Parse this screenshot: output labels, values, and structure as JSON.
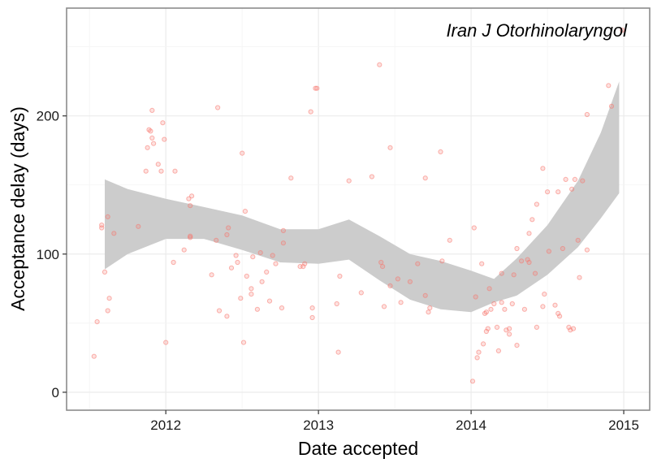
{
  "chart_data": {
    "type": "scatter",
    "title": "",
    "annotation": "Iran J Otorhinolaryngol",
    "xlabel": "Date accepted",
    "ylabel": "Acceptance delay (days)",
    "xlim": [
      2011.35,
      2015.17
    ],
    "ylim": [
      -13,
      278
    ],
    "x_ticks": [
      2012,
      2013,
      2014,
      2015
    ],
    "x_tick_labels": [
      "2012",
      "2013",
      "2014",
      "2015"
    ],
    "y_ticks": [
      0,
      100,
      200
    ],
    "y_tick_labels": [
      "0",
      "100",
      "200"
    ],
    "grid": true,
    "legend": "none",
    "point_color": "#f8766d",
    "smooth_fill": "#cccccc",
    "series": [
      {
        "values": [
          [
            2011.53,
            26
          ],
          [
            2011.55,
            51
          ],
          [
            2011.58,
            121
          ],
          [
            2011.58,
            119
          ],
          [
            2011.6,
            87
          ],
          [
            2011.62,
            127
          ],
          [
            2011.62,
            59
          ],
          [
            2011.63,
            68
          ],
          [
            2011.66,
            115
          ],
          [
            2011.82,
            120
          ],
          [
            2011.87,
            160
          ],
          [
            2011.88,
            177
          ],
          [
            2011.89,
            190
          ],
          [
            2011.9,
            189
          ],
          [
            2011.91,
            204
          ],
          [
            2011.91,
            184
          ],
          [
            2011.92,
            180
          ],
          [
            2011.95,
            165
          ],
          [
            2011.97,
            160
          ],
          [
            2011.98,
            195
          ],
          [
            2011.99,
            183
          ],
          [
            2012,
            36
          ],
          [
            2012.05,
            94
          ],
          [
            2012.06,
            160
          ],
          [
            2012.12,
            103
          ],
          [
            2012.15,
            140
          ],
          [
            2012.16,
            135
          ],
          [
            2012.16,
            113
          ],
          [
            2012.16,
            112
          ],
          [
            2012.17,
            142
          ],
          [
            2012.3,
            85
          ],
          [
            2012.33,
            110
          ],
          [
            2012.34,
            206
          ],
          [
            2012.35,
            59
          ],
          [
            2012.4,
            55
          ],
          [
            2012.4,
            114
          ],
          [
            2012.41,
            119
          ],
          [
            2012.43,
            90
          ],
          [
            2012.46,
            99
          ],
          [
            2012.47,
            94
          ],
          [
            2012.49,
            68
          ],
          [
            2012.5,
            173
          ],
          [
            2012.51,
            36
          ],
          [
            2012.52,
            131
          ],
          [
            2012.53,
            84
          ],
          [
            2012.56,
            75
          ],
          [
            2012.56,
            71
          ],
          [
            2012.57,
            98
          ],
          [
            2012.6,
            60
          ],
          [
            2012.62,
            101
          ],
          [
            2012.63,
            80
          ],
          [
            2012.66,
            87
          ],
          [
            2012.68,
            66
          ],
          [
            2012.7,
            99
          ],
          [
            2012.72,
            93
          ],
          [
            2012.76,
            61
          ],
          [
            2012.77,
            108
          ],
          [
            2012.77,
            117
          ],
          [
            2012.82,
            155
          ],
          [
            2012.88,
            91
          ],
          [
            2012.9,
            91
          ],
          [
            2012.91,
            93
          ],
          [
            2012.95,
            203
          ],
          [
            2012.96,
            61
          ],
          [
            2012.96,
            54
          ],
          [
            2012.98,
            220
          ],
          [
            2012.99,
            220
          ],
          [
            2013.12,
            64
          ],
          [
            2013.13,
            29
          ],
          [
            2013.14,
            84
          ],
          [
            2013.2,
            153
          ],
          [
            2013.28,
            72
          ],
          [
            2013.35,
            156
          ],
          [
            2013.4,
            237
          ],
          [
            2013.41,
            94
          ],
          [
            2013.42,
            91
          ],
          [
            2013.43,
            62
          ],
          [
            2013.47,
            77
          ],
          [
            2013.47,
            177
          ],
          [
            2013.52,
            82
          ],
          [
            2013.54,
            65
          ],
          [
            2013.6,
            80
          ],
          [
            2013.65,
            93
          ],
          [
            2013.7,
            155
          ],
          [
            2013.7,
            70
          ],
          [
            2013.72,
            58
          ],
          [
            2013.73,
            61
          ],
          [
            2013.8,
            174
          ],
          [
            2013.81,
            95
          ],
          [
            2013.86,
            110
          ],
          [
            2014.01,
            8
          ],
          [
            2014.02,
            119
          ],
          [
            2014.03,
            69
          ],
          [
            2014.04,
            25
          ],
          [
            2014.05,
            29
          ],
          [
            2014.07,
            93
          ],
          [
            2014.08,
            35
          ],
          [
            2014.09,
            57
          ],
          [
            2014.1,
            58
          ],
          [
            2014.1,
            44
          ],
          [
            2014.11,
            46
          ],
          [
            2014.12,
            75
          ],
          [
            2014.13,
            60
          ],
          [
            2014.15,
            64
          ],
          [
            2014.17,
            47
          ],
          [
            2014.18,
            30
          ],
          [
            2014.2,
            65
          ],
          [
            2014.2,
            86
          ],
          [
            2014.22,
            60
          ],
          [
            2014.23,
            45
          ],
          [
            2014.25,
            42
          ],
          [
            2014.25,
            46
          ],
          [
            2014.27,
            64
          ],
          [
            2014.28,
            85
          ],
          [
            2014.3,
            104
          ],
          [
            2014.3,
            34
          ],
          [
            2014.33,
            95
          ],
          [
            2014.35,
            60
          ],
          [
            2014.37,
            96
          ],
          [
            2014.38,
            115
          ],
          [
            2014.38,
            94
          ],
          [
            2014.4,
            125
          ],
          [
            2014.42,
            86
          ],
          [
            2014.43,
            47
          ],
          [
            2014.43,
            136
          ],
          [
            2014.47,
            162
          ],
          [
            2014.47,
            62
          ],
          [
            2014.48,
            71
          ],
          [
            2014.5,
            145
          ],
          [
            2014.51,
            102
          ],
          [
            2014.55,
            63
          ],
          [
            2014.57,
            145
          ],
          [
            2014.57,
            57
          ],
          [
            2014.58,
            55
          ],
          [
            2014.6,
            104
          ],
          [
            2014.62,
            154
          ],
          [
            2014.64,
            47
          ],
          [
            2014.65,
            45
          ],
          [
            2014.66,
            147
          ],
          [
            2014.67,
            46
          ],
          [
            2014.68,
            154
          ],
          [
            2014.7,
            110
          ],
          [
            2014.71,
            83
          ],
          [
            2014.73,
            153
          ],
          [
            2014.76,
            103
          ],
          [
            2014.76,
            201
          ],
          [
            2014.9,
            222
          ],
          [
            2014.92,
            207
          ],
          [
            2014.99,
            262
          ]
        ]
      }
    ],
    "smooth_band": {
      "x": [
        2011.6,
        2011.75,
        2012,
        2012.25,
        2012.5,
        2012.75,
        2013,
        2013.2,
        2013.4,
        2013.6,
        2013.8,
        2014,
        2014.15,
        2014.3,
        2014.5,
        2014.7,
        2014.85,
        2014.97
      ],
      "upper": [
        154,
        147,
        140,
        134,
        128,
        118,
        118,
        125,
        113,
        100,
        95,
        88,
        82,
        97,
        121,
        153,
        188,
        225
      ],
      "lower": [
        89,
        100,
        111,
        111,
        103,
        94,
        93,
        96,
        81,
        67,
        60,
        58,
        65,
        70,
        85,
        105,
        126,
        144
      ]
    }
  }
}
